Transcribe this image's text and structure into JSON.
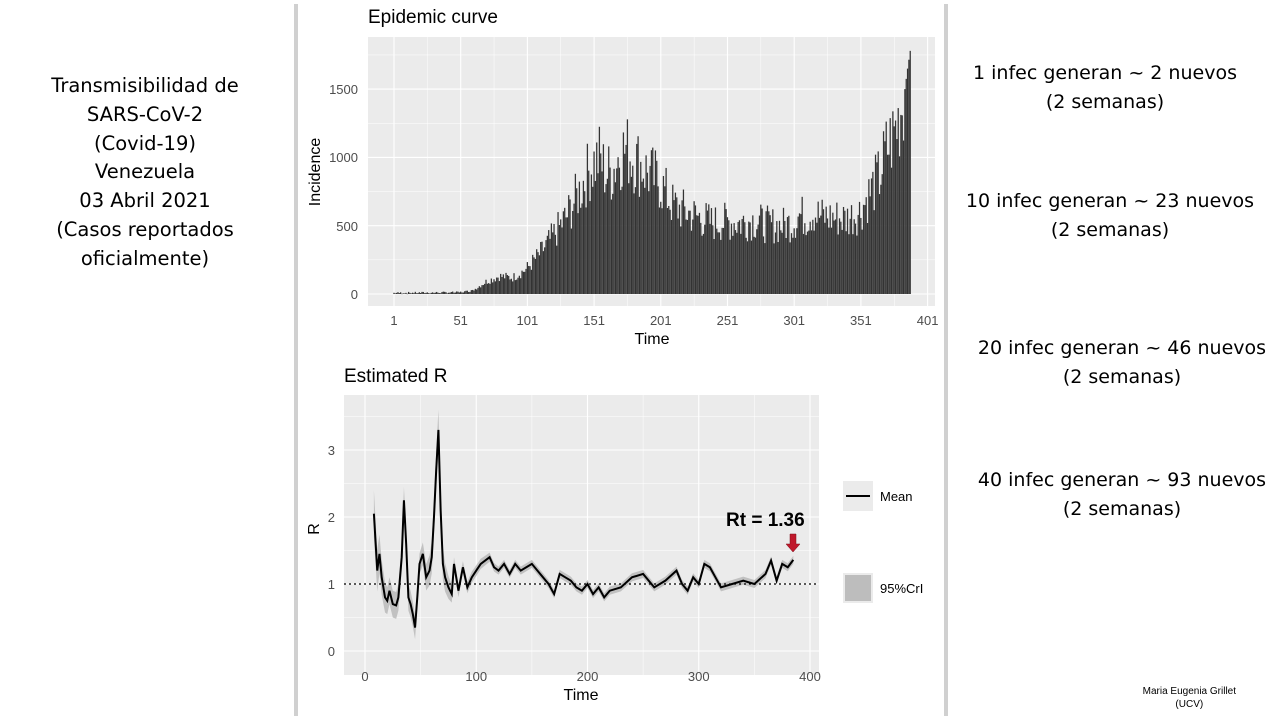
{
  "left_title": {
    "lines": [
      "Transmisibilidad de",
      "SARS-CoV-2",
      "(Covid-19)",
      "Venezuela",
      "03 Abril 2021",
      "(Casos reportados",
      "oficialmente)"
    ]
  },
  "notes": [
    {
      "line1": "1 infec generan ~ 2 nuevos",
      "line2": "(2 semanas)"
    },
    {
      "line1": "10 infec generan ~ 23 nuevos",
      "line2": "(2 semanas)"
    },
    {
      "line1": "20 infec generan ~ 46 nuevos",
      "line2": "(2 semanas)"
    },
    {
      "line1": "40 infec generan ~ 93 nuevos",
      "line2": "(2 semanas)"
    }
  ],
  "credit": {
    "name": "Maria Eugenia Grillet",
    "org": "(UCV)"
  },
  "colors": {
    "panel": "#ebebeb",
    "grid": "#ffffff",
    "bar": "#333333",
    "line": "#000000",
    "band": "#bdbdbd",
    "arrow": "#c0182b"
  },
  "chart_data": [
    {
      "type": "bar",
      "title": "Epidemic curve",
      "xlabel": "Time",
      "ylabel": "Incidence",
      "xlim": [
        1,
        401
      ],
      "ylim": [
        0,
        1750
      ],
      "xticks": [
        "1",
        "51",
        "101",
        "151",
        "201",
        "251",
        "301",
        "351",
        "401"
      ],
      "yticks": [
        "0",
        "500",
        "1000",
        "1500"
      ],
      "grid": true,
      "series_keypoints": {
        "x": [
          1,
          30,
          50,
          60,
          70,
          80,
          90,
          100,
          110,
          120,
          130,
          140,
          145,
          150,
          155,
          160,
          165,
          170,
          175,
          180,
          185,
          190,
          200,
          210,
          220,
          230,
          240,
          250,
          260,
          270,
          280,
          290,
          300,
          305,
          310,
          315,
          320,
          330,
          340,
          350,
          360,
          365,
          370,
          375,
          380,
          384,
          386,
          388
        ],
        "y": [
          8,
          10,
          12,
          25,
          90,
          130,
          120,
          180,
          290,
          420,
          560,
          750,
          860,
          950,
          1000,
          880,
          900,
          1020,
          1060,
          1000,
          960,
          900,
          820,
          650,
          600,
          560,
          520,
          530,
          520,
          540,
          510,
          500,
          520,
          580,
          560,
          600,
          570,
          560,
          550,
          600,
          780,
          860,
          1050,
          1150,
          1300,
          1500,
          1650,
          1780
        ]
      }
    },
    {
      "type": "line",
      "title": "Estimated R",
      "xlabel": "Time",
      "ylabel": "R",
      "xlim": [
        0,
        400
      ],
      "ylim": [
        0,
        3.4
      ],
      "xticks": [
        "0",
        "100",
        "200",
        "300",
        "400"
      ],
      "yticks": [
        "0",
        "1",
        "2",
        "3"
      ],
      "reference_line": 1,
      "grid": true,
      "legend": {
        "position": "right",
        "entries": [
          "Mean",
          "95%CrI"
        ]
      },
      "annotation": "Rt = 1.36",
      "series": [
        {
          "name": "Mean",
          "x": [
            8,
            11,
            13,
            15,
            18,
            20,
            22,
            25,
            28,
            30,
            33,
            35,
            37,
            39,
            41,
            43,
            45,
            47,
            49,
            52,
            55,
            58,
            60,
            62,
            64,
            66,
            68,
            70,
            72,
            75,
            78,
            80,
            84,
            88,
            92,
            96,
            100,
            104,
            108,
            112,
            116,
            120,
            125,
            130,
            135,
            140,
            145,
            150,
            155,
            160,
            165,
            170,
            175,
            180,
            185,
            190,
            195,
            200,
            205,
            210,
            215,
            220,
            230,
            240,
            250,
            260,
            270,
            280,
            285,
            290,
            295,
            300,
            305,
            310,
            315,
            320,
            330,
            340,
            350,
            360,
            365,
            370,
            375,
            380,
            385
          ],
          "y": [
            2.05,
            1.2,
            1.45,
            1.1,
            0.8,
            0.75,
            0.9,
            0.7,
            0.68,
            0.8,
            1.4,
            2.25,
            1.6,
            0.8,
            0.7,
            0.55,
            0.35,
            0.8,
            1.3,
            1.45,
            1.1,
            1.2,
            1.4,
            2.0,
            2.7,
            3.3,
            2.1,
            1.3,
            1.1,
            0.95,
            0.85,
            1.3,
            0.9,
            1.25,
            0.95,
            1.1,
            1.2,
            1.3,
            1.35,
            1.4,
            1.25,
            1.2,
            1.3,
            1.15,
            1.3,
            1.2,
            1.25,
            1.3,
            1.2,
            1.1,
            1.0,
            0.85,
            1.15,
            1.1,
            1.05,
            0.95,
            0.9,
            1.0,
            0.85,
            0.95,
            0.8,
            0.9,
            0.95,
            1.1,
            1.15,
            0.95,
            1.05,
            1.2,
            1.0,
            0.9,
            1.1,
            1.0,
            1.3,
            1.25,
            1.1,
            0.95,
            1.0,
            1.05,
            1.0,
            1.15,
            1.35,
            1.05,
            1.3,
            1.25,
            1.36
          ]
        }
      ],
      "band_halfwidth_keypoints": {
        "x": [
          8,
          20,
          40,
          50,
          66,
          80,
          120,
          385
        ],
        "y": [
          0.35,
          0.2,
          0.2,
          0.15,
          0.3,
          0.1,
          0.06,
          0.06
        ]
      }
    }
  ]
}
